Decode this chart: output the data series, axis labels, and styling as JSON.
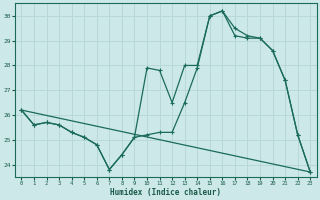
{
  "xlabel": "Humidex (Indice chaleur)",
  "bg_color": "#cce8e8",
  "grid_color": "#b8d8d8",
  "line_color": "#1a6b5a",
  "xlim": [
    -0.5,
    23.5
  ],
  "ylim": [
    23.5,
    30.5
  ],
  "xticks": [
    0,
    1,
    2,
    3,
    4,
    5,
    6,
    7,
    8,
    9,
    10,
    11,
    12,
    13,
    14,
    15,
    16,
    17,
    18,
    19,
    20,
    21,
    22,
    23
  ],
  "yticks": [
    24,
    25,
    26,
    27,
    28,
    29,
    30
  ],
  "line1_x": [
    0,
    1,
    2,
    3,
    4,
    5,
    6,
    7,
    8,
    9,
    10,
    11,
    12,
    13,
    14,
    15,
    16,
    17,
    18,
    19,
    20,
    21,
    22,
    23
  ],
  "line1_y": [
    26.2,
    25.6,
    25.7,
    25.6,
    25.3,
    25.1,
    24.8,
    23.8,
    24.4,
    25.1,
    25.2,
    25.3,
    25.3,
    26.5,
    27.9,
    30.0,
    30.2,
    29.2,
    29.1,
    29.1,
    28.6,
    27.4,
    25.2,
    23.7
  ],
  "line2_x": [
    0,
    1,
    2,
    3,
    4,
    5,
    6,
    7,
    8,
    9,
    10,
    11,
    12,
    13,
    14,
    15,
    16,
    17,
    18,
    19,
    20,
    21,
    22,
    23
  ],
  "line2_y": [
    26.2,
    25.6,
    25.7,
    25.6,
    25.3,
    25.1,
    24.8,
    23.8,
    24.4,
    25.1,
    27.9,
    27.8,
    26.5,
    28.0,
    28.0,
    30.0,
    30.2,
    29.5,
    29.2,
    29.1,
    28.6,
    27.4,
    25.2,
    23.7
  ],
  "line3_x": [
    0,
    23
  ],
  "line3_y": [
    26.2,
    23.7
  ]
}
